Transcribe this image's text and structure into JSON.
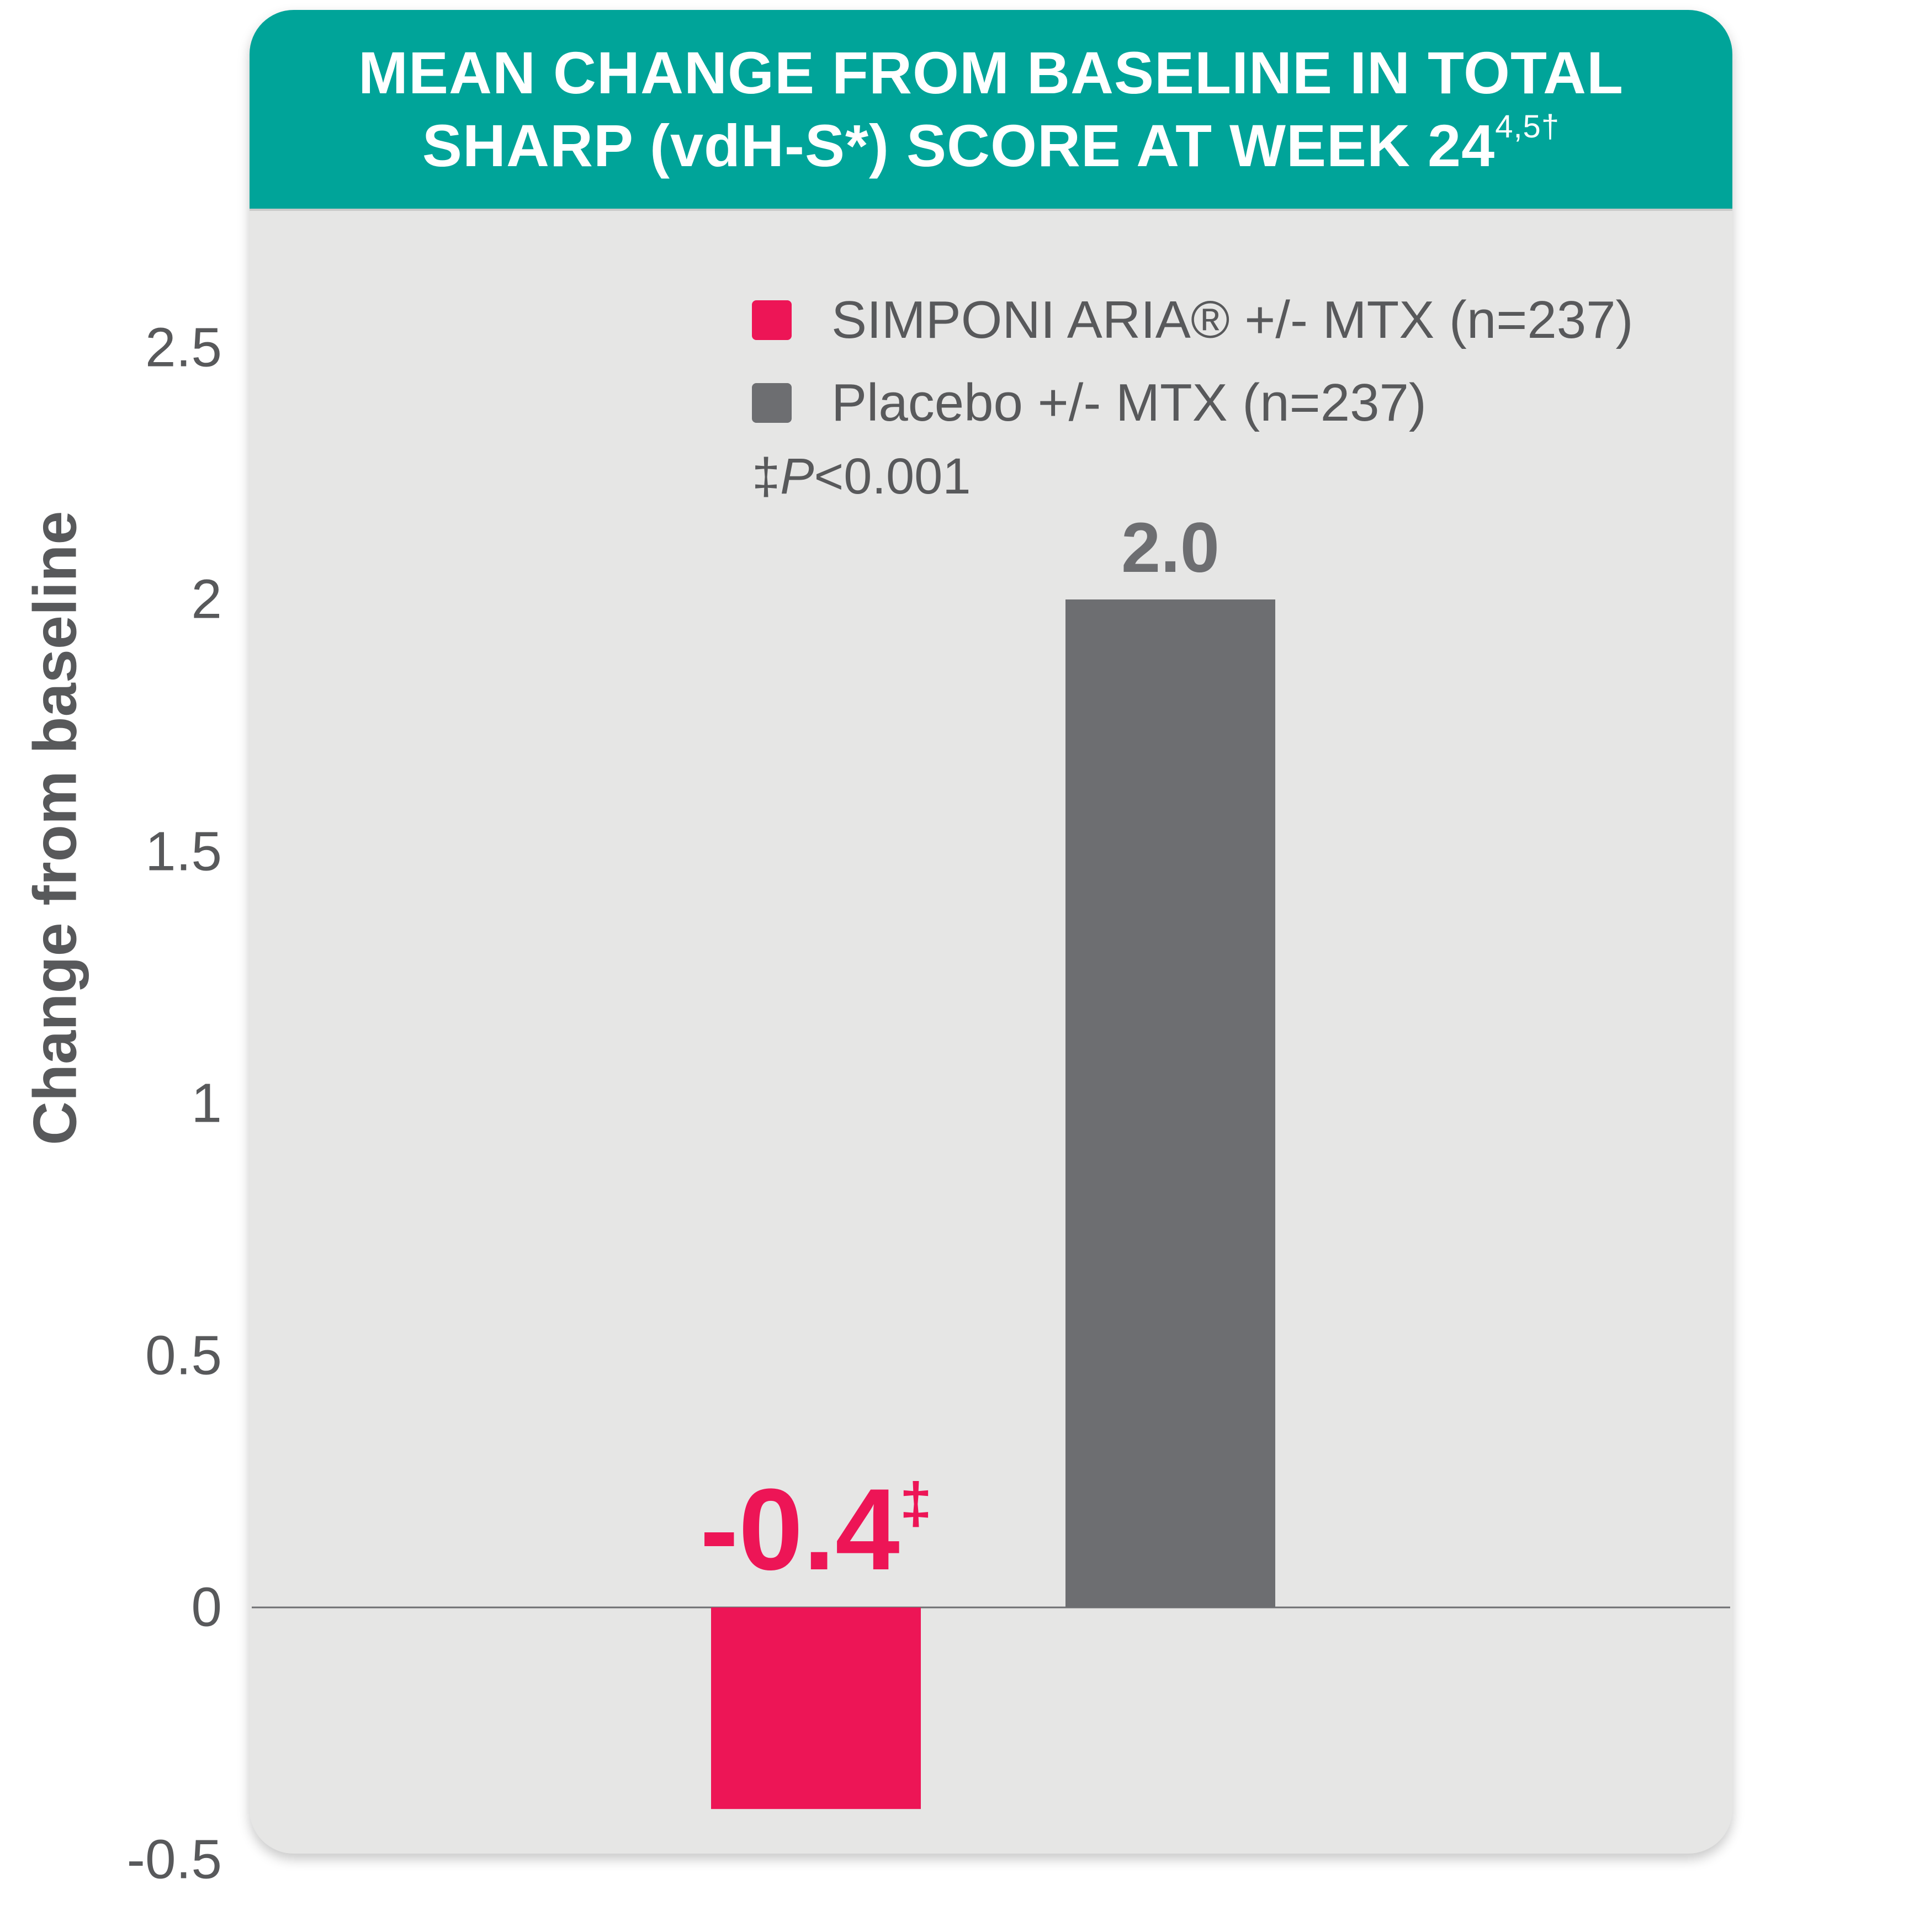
{
  "header": {
    "line1": "MEAN CHANGE FROM BASELINE IN TOTAL",
    "line2": "SHARP (vdH-S*) SCORE AT WEEK 24",
    "line2_sup": "4,5†"
  },
  "legend": {
    "items": [
      {
        "label": "SIMPONI ARIA® +/- MTX (n=237)",
        "color": "#ed1556"
      },
      {
        "label": "Placebo +/- MTX (n=237)",
        "color": "#6d6e71"
      }
    ],
    "footnote_mark": "‡",
    "footnote_italic": "P",
    "footnote_rest": "<0.001"
  },
  "chart_data": {
    "type": "bar",
    "ylabel": "Change from baseline",
    "xlabel": "",
    "ylim": [
      -0.5,
      2.5
    ],
    "yticks": [
      "-0.5",
      "0",
      "0.5",
      "1",
      "1.5",
      "2",
      "2.5"
    ],
    "yticks_values": [
      -0.5,
      0,
      0.5,
      1,
      1.5,
      2,
      2.5
    ],
    "categories": [
      "SIMPONI ARIA® +/- MTX (n=237)",
      "Placebo +/- MTX (n=237)"
    ],
    "values": [
      -0.4,
      2.0
    ],
    "data_labels": [
      "-0.4",
      "2.0"
    ],
    "data_label_marks": [
      "‡",
      ""
    ],
    "colors": [
      "#ed1556",
      "#6d6e71"
    ],
    "grid": false,
    "legend": "top-right"
  }
}
